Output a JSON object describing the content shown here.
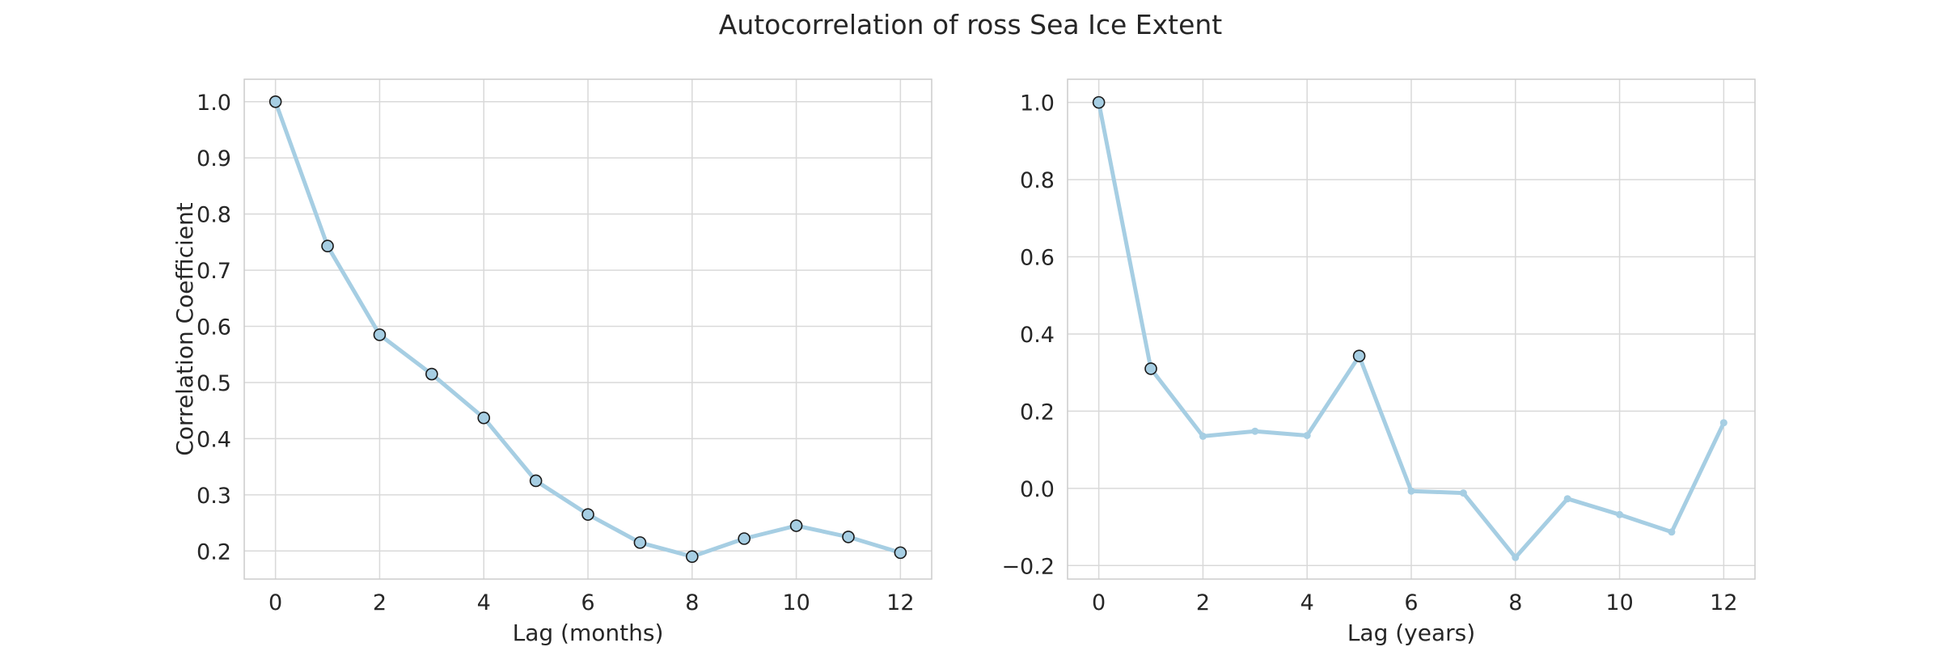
{
  "figure": {
    "title": "Autocorrelation of ross Sea Ice Extent",
    "line_color": "#a6cee3",
    "marker_edge_color": "#1a1a1a",
    "grid_color": "#d9d9d9"
  },
  "chart_data": [
    {
      "type": "line",
      "title": "",
      "xlabel": "Lag (months)",
      "ylabel": "Correlation Coefficient",
      "x": [
        0,
        1,
        2,
        3,
        4,
        5,
        6,
        7,
        8,
        9,
        10,
        11,
        12
      ],
      "values": [
        1.0,
        0.743,
        0.585,
        0.515,
        0.437,
        0.325,
        0.265,
        0.215,
        0.19,
        0.222,
        0.245,
        0.225,
        0.197
      ],
      "significant": [
        true,
        true,
        true,
        true,
        true,
        true,
        true,
        true,
        true,
        true,
        true,
        true,
        true
      ],
      "xlim": [
        -0.6,
        12.6
      ],
      "ylim": [
        0.15,
        1.04
      ],
      "xticks": [
        0,
        2,
        4,
        6,
        8,
        10,
        12
      ],
      "xtick_labels": [
        "0",
        "2",
        "4",
        "6",
        "8",
        "10",
        "12"
      ],
      "yticks": [
        0.2,
        0.3,
        0.4,
        0.5,
        0.6,
        0.7,
        0.8,
        0.9,
        1.0
      ],
      "ytick_labels": [
        "0.2",
        "0.3",
        "0.4",
        "0.5",
        "0.6",
        "0.7",
        "0.8",
        "0.9",
        "1.0"
      ],
      "grid": true
    },
    {
      "type": "line",
      "title": "",
      "xlabel": "Lag (years)",
      "ylabel": "",
      "x": [
        0,
        1,
        2,
        3,
        4,
        5,
        6,
        7,
        8,
        9,
        10,
        11,
        12
      ],
      "values": [
        1.0,
        0.31,
        0.135,
        0.148,
        0.137,
        0.343,
        -0.007,
        -0.012,
        -0.179,
        -0.027,
        -0.068,
        -0.113,
        0.17
      ],
      "significant": [
        true,
        true,
        false,
        false,
        false,
        true,
        false,
        false,
        false,
        false,
        false,
        false,
        false
      ],
      "xlim": [
        -0.6,
        12.6
      ],
      "ylim": [
        -0.235,
        1.06
      ],
      "xticks": [
        0,
        2,
        4,
        6,
        8,
        10,
        12
      ],
      "xtick_labels": [
        "0",
        "2",
        "4",
        "6",
        "8",
        "10",
        "12"
      ],
      "yticks": [
        -0.2,
        0.0,
        0.2,
        0.4,
        0.6,
        0.8,
        1.0
      ],
      "ytick_labels": [
        "−0.2",
        "0.0",
        "0.2",
        "0.4",
        "0.6",
        "0.8",
        "1.0"
      ],
      "grid": true
    }
  ]
}
